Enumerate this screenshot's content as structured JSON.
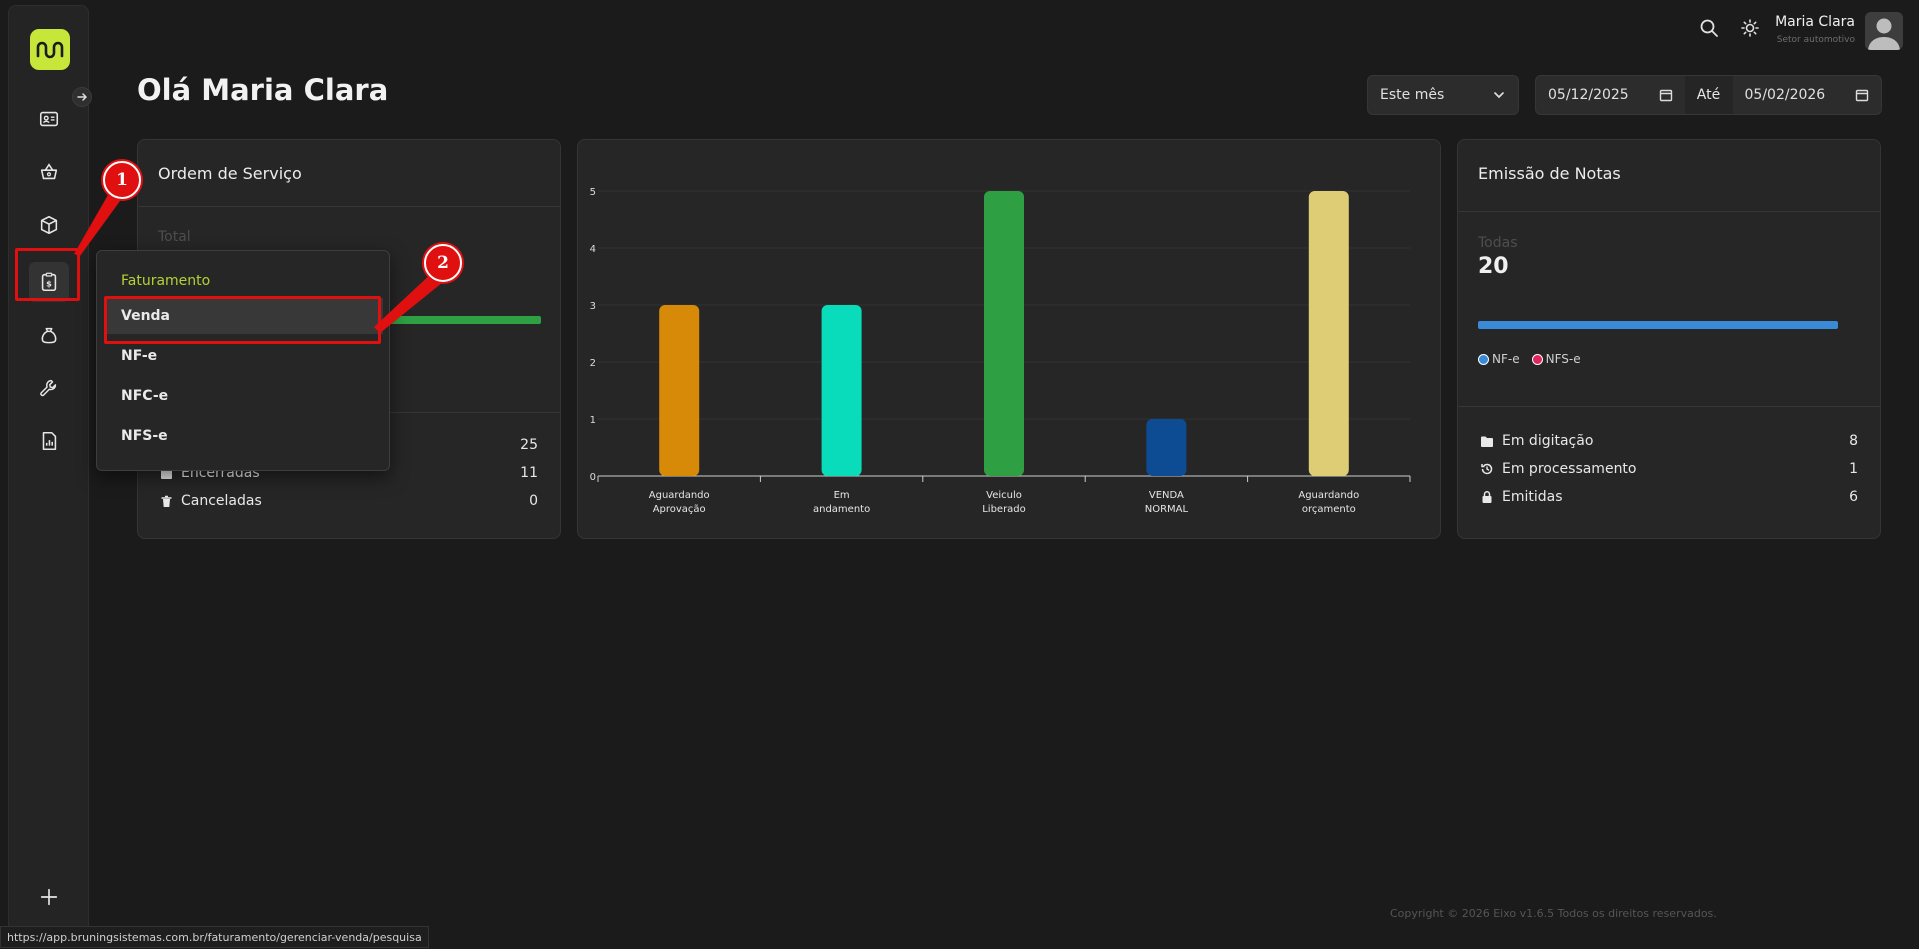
{
  "header": {
    "greeting": "Olá Maria Clara",
    "user_name": "Maria Clara",
    "user_role": "Setor automotivo"
  },
  "filters": {
    "period": "Este mês",
    "date_from": "05/12/2025",
    "date_sep": "Até",
    "date_to": "05/02/2026"
  },
  "sidebar": {
    "items": [
      {
        "icon": "id-card-icon"
      },
      {
        "icon": "basket-icon"
      },
      {
        "icon": "box-icon"
      },
      {
        "icon": "invoice-icon"
      },
      {
        "icon": "money-bag-icon"
      },
      {
        "icon": "wrench-icon"
      },
      {
        "icon": "report-icon"
      }
    ]
  },
  "menu": {
    "header": "Faturamento",
    "items": [
      "Venda",
      "NF-e",
      "NFC-e",
      "NFS-e"
    ]
  },
  "badges": {
    "one": "1",
    "two": "2"
  },
  "ordem_servico": {
    "title": "Ordem de Serviço",
    "total_label": "Total",
    "bar_color": "#2ea043",
    "rows": [
      {
        "label": "",
        "value": "25"
      },
      {
        "label": "Encerradas",
        "value": "11"
      },
      {
        "label": "Canceladas",
        "value": "0"
      }
    ]
  },
  "chart_data": {
    "type": "bar",
    "categories": [
      [
        "Aguardando",
        "Aprovação"
      ],
      [
        "Em",
        "andamento"
      ],
      [
        "Veiculo",
        "Liberado"
      ],
      [
        "VENDA",
        "NORMAL"
      ],
      [
        "Aguardando",
        "orçamento"
      ]
    ],
    "values": [
      3,
      3,
      5,
      1,
      5
    ],
    "colors": [
      "#d68a08",
      "#08dcba",
      "#2ea043",
      "#0d4c93",
      "#dfcd76"
    ],
    "ylim": [
      0,
      5
    ],
    "yticks": [
      "0",
      "1",
      "2",
      "3",
      "4",
      "5"
    ],
    "grid": true,
    "title": "",
    "xlabel": "",
    "ylabel": ""
  },
  "emissao": {
    "title": "Emissão de Notas",
    "total_label": "Todas",
    "total_value": "20",
    "bar_color": "#3b8ad8",
    "legend": [
      {
        "name": "NF-e",
        "color": "#3b8ad8"
      },
      {
        "name": "NFS-e",
        "color": "#e0245e"
      }
    ],
    "rows": [
      {
        "label": "Em digitação",
        "value": "8",
        "icon": "folder-icon"
      },
      {
        "label": "Em processamento",
        "value": "1",
        "icon": "history-icon"
      },
      {
        "label": "Emitidas",
        "value": "6",
        "icon": "lock-icon"
      }
    ]
  },
  "footer": {
    "copyright": "Copyright © 2026 Eixo v1.6.5 Todos os direitos reservados."
  },
  "statusbar": {
    "url": "https://app.bruningsistemas.com.br/faturamento/gerenciar-venda/pesquisa"
  },
  "colors": {
    "accent": "#c7e63a",
    "highlight": "#e01010"
  }
}
